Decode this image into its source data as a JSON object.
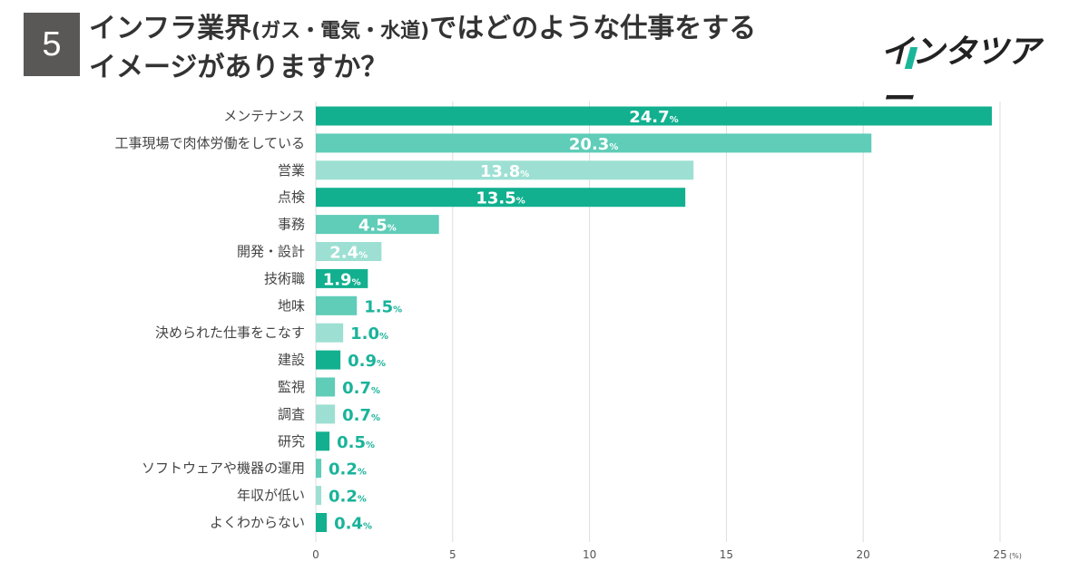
{
  "header": {
    "question_number": "5",
    "title_line1_a": "インフラ業界",
    "title_line1_paren": "(ガス・電気・水道)",
    "title_line1_b": "ではどのような仕事をする",
    "title_line2": "イメージがありますか？",
    "logo_text": "インタツアー"
  },
  "colors": {
    "dark": "#12b08f",
    "medium": "#5fcdb8",
    "light": "#9de0d3",
    "label": "#1ab39a"
  },
  "chart_data": {
    "type": "bar",
    "orientation": "horizontal",
    "categories": [
      "メンテナンス",
      "工事現場で肉体労働をしている",
      "営業",
      "点検",
      "事務",
      "開発・設計",
      "技術職",
      "地味",
      "決められた仕事をこなす",
      "建設",
      "監視",
      "調査",
      "研究",
      "ソフトウェアや機器の運用",
      "年収が低い",
      "よくわからない"
    ],
    "values": [
      24.7,
      20.3,
      13.8,
      13.5,
      4.5,
      2.4,
      1.9,
      1.5,
      1.0,
      0.9,
      0.7,
      0.7,
      0.5,
      0.2,
      0.2,
      0.4
    ],
    "value_labels": [
      "24.7",
      "20.3",
      "13.8",
      "13.5",
      "4.5",
      "2.4",
      "1.9",
      "1.5",
      "1.0",
      "0.9",
      "0.7",
      "0.7",
      "0.5",
      "0.2",
      "0.2",
      "0.4"
    ],
    "bar_tones": [
      "dark",
      "medium",
      "light",
      "dark",
      "medium",
      "light",
      "dark",
      "medium",
      "light",
      "dark",
      "medium",
      "light",
      "dark",
      "medium",
      "light",
      "dark"
    ],
    "percent_symbol": "%",
    "xticks": [
      "0",
      "5",
      "10",
      "15",
      "20",
      "25"
    ],
    "xlim": [
      0,
      25
    ],
    "x_unit": "(%)",
    "grid": true
  }
}
